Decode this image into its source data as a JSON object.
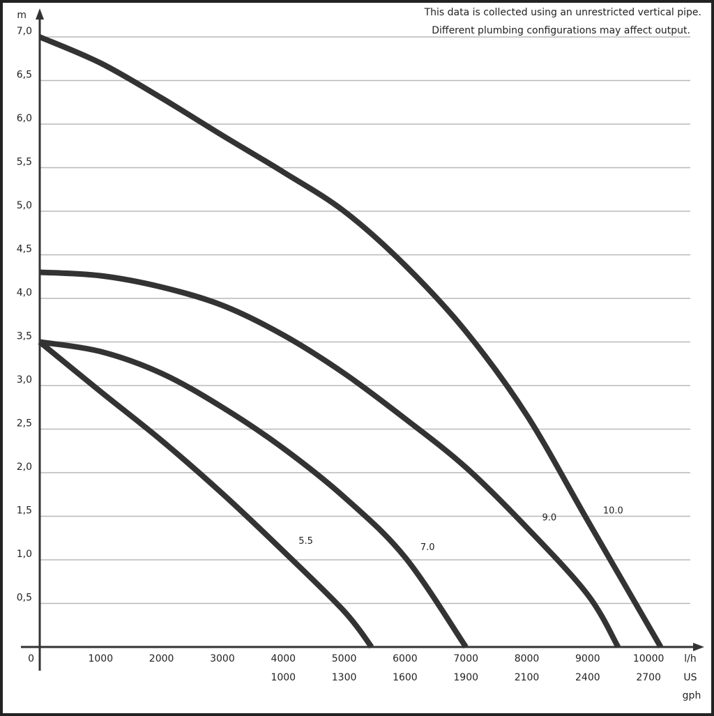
{
  "chart_data": {
    "type": "line",
    "annotation": [
      "This data is collected using an unrestricted vertical pipe.",
      "Different plumbing configurations may affect output."
    ],
    "y_label": "m",
    "x_label": "l/h",
    "x2_label": [
      "US",
      "gph"
    ],
    "xlim": [
      0,
      10800
    ],
    "ylim": [
      0,
      7
    ],
    "grid": true,
    "yticks": [
      {
        "value": 0.5,
        "label": "0,5"
      },
      {
        "value": 1,
        "label": "1,0"
      },
      {
        "value": 1.5,
        "label": "1,5"
      },
      {
        "value": 2,
        "label": "2,0"
      },
      {
        "value": 2.5,
        "label": "2,5"
      },
      {
        "value": 3,
        "label": "3,0"
      },
      {
        "value": 3.5,
        "label": "3,5"
      },
      {
        "value": 4,
        "label": "4,0"
      },
      {
        "value": 4.5,
        "label": "4,5"
      },
      {
        "value": 5,
        "label": "5,0"
      },
      {
        "value": 5.5,
        "label": "5,5"
      },
      {
        "value": 6,
        "label": "6,0"
      },
      {
        "value": 6.5,
        "label": "6,5"
      },
      {
        "value": 7,
        "label": "7,0"
      }
    ],
    "xticks": [
      0,
      1000,
      2000,
      3000,
      4000,
      5000,
      6000,
      7000,
      8000,
      9000,
      10000
    ],
    "x2ticks": [
      {
        "value": 4000,
        "label": "1000"
      },
      {
        "value": 5000,
        "label": "1300"
      },
      {
        "value": 6000,
        "label": "1600"
      },
      {
        "value": 7000,
        "label": "1900"
      },
      {
        "value": 8000,
        "label": "2100"
      },
      {
        "value": 9000,
        "label": "2400"
      },
      {
        "value": 10000,
        "label": "2700"
      }
    ],
    "series": [
      {
        "name": "10.0",
        "color": "#333333",
        "x": [
          0,
          1000,
          2000,
          3000,
          4000,
          5000,
          6000,
          7000,
          8000,
          9000,
          10200
        ],
        "values": [
          7.0,
          6.7,
          6.3,
          5.87,
          5.45,
          5.0,
          4.38,
          3.62,
          2.66,
          1.45,
          0
        ]
      },
      {
        "name": "9.0",
        "color": "#333333",
        "x": [
          0,
          1000,
          2000,
          3000,
          4000,
          5000,
          6000,
          7000,
          8000,
          9000,
          9500
        ],
        "values": [
          4.3,
          4.26,
          4.13,
          3.92,
          3.58,
          3.14,
          2.62,
          2.06,
          1.37,
          0.6,
          0
        ]
      },
      {
        "name": "7.0",
        "color": "#333333",
        "x": [
          0,
          1000,
          2000,
          3000,
          4000,
          5000,
          6000,
          7000
        ],
        "values": [
          3.5,
          3.39,
          3.14,
          2.75,
          2.28,
          1.72,
          1.03,
          0
        ]
      },
      {
        "name": "5.5",
        "color": "#333333",
        "x": [
          0,
          1000,
          2000,
          3000,
          4000,
          5000,
          5450
        ],
        "values": [
          3.5,
          2.93,
          2.37,
          1.76,
          1.1,
          0.41,
          0
        ]
      }
    ]
  }
}
